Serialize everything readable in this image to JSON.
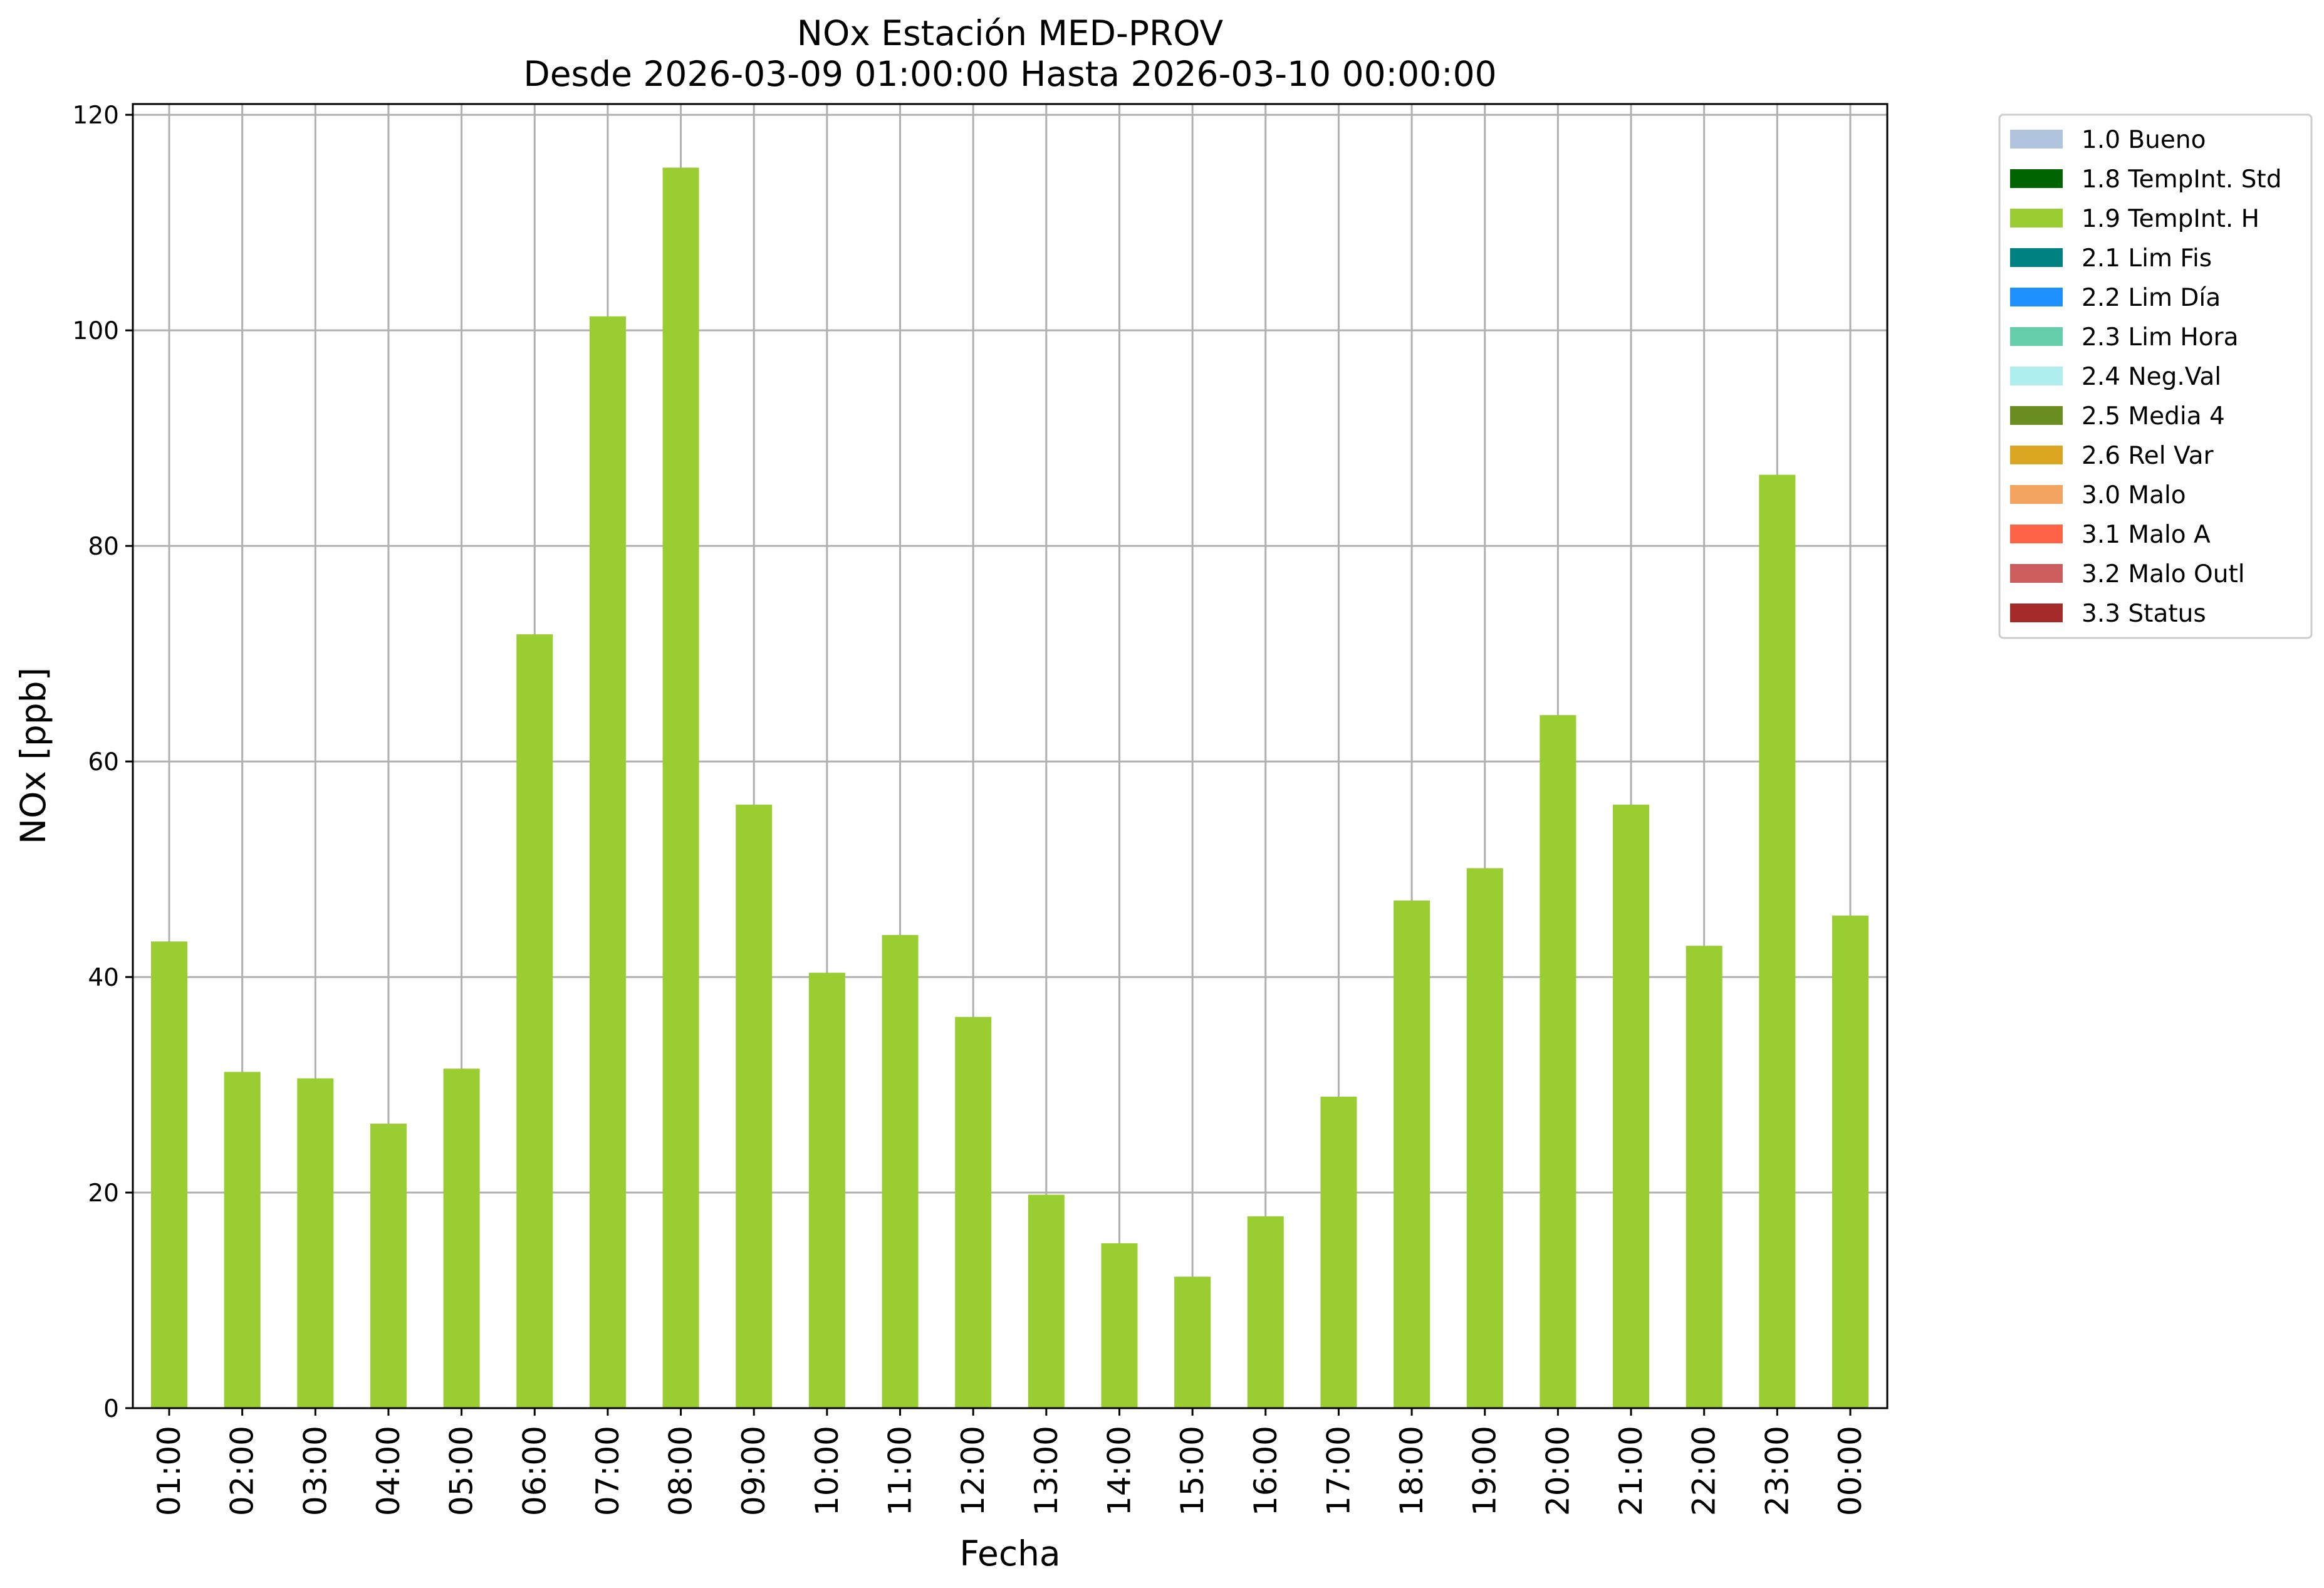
{
  "chart_data": {
    "type": "bar",
    "title_line1": "NOx Estación MED-PROV",
    "title_line2": "Desde 2026-03-09 01:00:00 Hasta 2026-03-10 00:00:00",
    "xlabel": "Fecha",
    "ylabel": "NOx [ppb]",
    "ylim": [
      0,
      121
    ],
    "yticks": [
      "0",
      "20",
      "40",
      "60",
      "80",
      "100",
      "120"
    ],
    "grid": true,
    "legend_position": "outside right, top",
    "categories": [
      "01:00",
      "02:00",
      "03:00",
      "04:00",
      "05:00",
      "06:00",
      "07:00",
      "08:00",
      "09:00",
      "10:00",
      "11:00",
      "12:00",
      "13:00",
      "14:00",
      "15:00",
      "16:00",
      "17:00",
      "18:00",
      "19:00",
      "20:00",
      "21:00",
      "22:00",
      "23:00",
      "00:00"
    ],
    "series": [
      {
        "name": "1.9 TempInt. H",
        "color": "#9acd32",
        "values": [
          43.3,
          31.2,
          30.6,
          26.4,
          31.5,
          71.8,
          101.3,
          115.1,
          56.0,
          40.4,
          43.9,
          36.3,
          19.8,
          15.3,
          12.2,
          17.8,
          28.9,
          47.1,
          50.1,
          64.3,
          56.0,
          42.9,
          86.6,
          45.7
        ]
      }
    ],
    "legend": [
      {
        "label": "1.0 Bueno",
        "color": "#b0c4de"
      },
      {
        "label": "1.8 TempInt. Std",
        "color": "#006400"
      },
      {
        "label": "1.9 TempInt. H",
        "color": "#9acd32"
      },
      {
        "label": "2.1 Lim Fis",
        "color": "#008080"
      },
      {
        "label": "2.2 Lim Día",
        "color": "#1e90ff"
      },
      {
        "label": "2.3 Lim Hora",
        "color": "#66cdaa"
      },
      {
        "label": "2.4 Neg.Val",
        "color": "#afeeee"
      },
      {
        "label": "2.5 Media 4",
        "color": "#6b8e23"
      },
      {
        "label": "2.6 Rel Var",
        "color": "#daa520"
      },
      {
        "label": "3.0 Malo",
        "color": "#f4a460"
      },
      {
        "label": "3.1 Malo A",
        "color": "#ff6347"
      },
      {
        "label": "3.2 Malo Outl",
        "color": "#cd5c5c"
      },
      {
        "label": "3.3 Status",
        "color": "#a52a2a"
      }
    ]
  }
}
